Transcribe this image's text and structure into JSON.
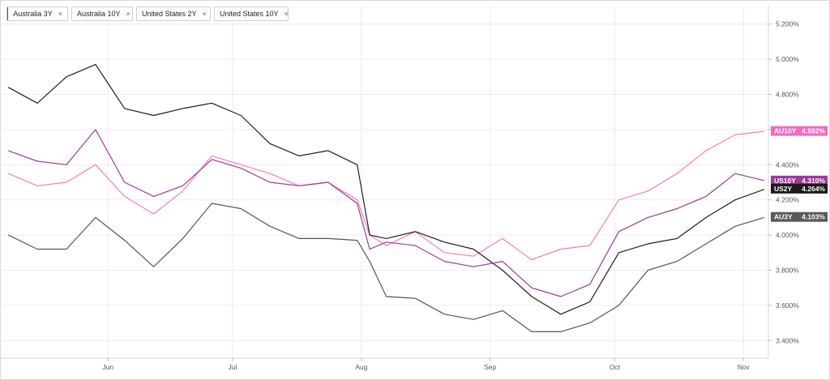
{
  "legend": [
    {
      "label": "Australia 3Y",
      "color": "#555555"
    },
    {
      "label": "Australia 10Y",
      "color": "#f27cc6"
    },
    {
      "label": "United States 2Y",
      "color": "#1f1f1f"
    },
    {
      "label": "United States 10Y",
      "color": "#9b3b96"
    }
  ],
  "close_glyph": "×",
  "menu_glyph": "·",
  "end_labels": [
    {
      "code": "AU10Y",
      "value": "4.592%",
      "bg": "#f06cbf",
      "fg": "#ffffff",
      "y": 4.592
    },
    {
      "code": "US10Y",
      "value": "4.310%",
      "bg": "#9b3b96",
      "fg": "#ffffff",
      "y": 4.31
    },
    {
      "code": "US2Y",
      "value": "4.264%",
      "bg": "#1a1a1a",
      "fg": "#ffffff",
      "y": 4.264
    },
    {
      "code": "AU3Y",
      "value": "4.103%",
      "bg": "#5a5a5a",
      "fg": "#ffffff",
      "y": 4.103
    }
  ],
  "chart_data": {
    "type": "line",
    "title": "",
    "xlabel": "",
    "ylabel": "",
    "y_unit": "%",
    "ylim": [
      3.3,
      5.3
    ],
    "y_ticks": [
      3.4,
      3.6,
      3.8,
      4.0,
      4.2,
      4.4,
      4.6,
      4.8,
      5.0,
      5.2
    ],
    "y_tick_labels": [
      "3.400%",
      "3.600%",
      "3.800%",
      "4.000%",
      "4.200%",
      "4.400%",
      "4.600%",
      "4.800%",
      "5.000%",
      "5.200%"
    ],
    "x_ticks": [
      "2023-06-01",
      "2023-07-01",
      "2023-08-01",
      "2023-09-01",
      "2023-10-01",
      "2023-11-01"
    ],
    "x_tick_labels": [
      "Jun",
      "Jul",
      "Aug",
      "Sep",
      "Oct",
      "Nov"
    ],
    "xlim": [
      "2023-05-06",
      "2023-11-07"
    ],
    "grid": true,
    "legend_position": "top-left",
    "x": [
      "2023-05-08",
      "2023-05-15",
      "2023-05-22",
      "2023-05-29",
      "2023-06-05",
      "2023-06-12",
      "2023-06-19",
      "2023-06-26",
      "2023-07-03",
      "2023-07-10",
      "2023-07-17",
      "2023-07-24",
      "2023-07-31",
      "2023-08-03",
      "2023-08-07",
      "2023-08-14",
      "2023-08-21",
      "2023-08-28",
      "2023-09-04",
      "2023-09-11",
      "2023-09-18",
      "2023-09-25",
      "2023-10-02",
      "2023-10-09",
      "2023-10-16",
      "2023-10-23",
      "2023-10-30",
      "2023-11-06"
    ],
    "series": [
      {
        "name": "Australia 3Y",
        "color": "#555555",
        "values": [
          4.0,
          3.92,
          3.92,
          4.1,
          3.97,
          3.82,
          3.98,
          4.18,
          4.15,
          4.05,
          3.98,
          3.98,
          3.97,
          3.85,
          3.65,
          3.64,
          3.55,
          3.52,
          3.57,
          3.45,
          3.45,
          3.5,
          3.6,
          3.8,
          3.85,
          3.95,
          4.05,
          4.1
        ]
      },
      {
        "name": "Australia 10Y",
        "color": "#f27cc6",
        "values": [
          4.35,
          4.28,
          4.3,
          4.4,
          4.22,
          4.12,
          4.25,
          4.45,
          4.4,
          4.35,
          4.28,
          4.3,
          4.2,
          4.0,
          3.94,
          4.02,
          3.9,
          3.88,
          3.98,
          3.86,
          3.92,
          3.94,
          4.2,
          4.25,
          4.35,
          4.48,
          4.57,
          4.59
        ]
      },
      {
        "name": "United States 2Y",
        "color": "#1f1f1f",
        "values": [
          4.84,
          4.75,
          4.9,
          4.97,
          4.72,
          4.68,
          4.72,
          4.75,
          4.68,
          4.52,
          4.45,
          4.48,
          4.4,
          4.0,
          3.98,
          4.02,
          3.96,
          3.92,
          3.8,
          3.65,
          3.55,
          3.62,
          3.9,
          3.95,
          3.98,
          4.1,
          4.2,
          4.26
        ]
      },
      {
        "name": "United States 10Y",
        "color": "#9b3b96",
        "values": [
          4.48,
          4.42,
          4.4,
          4.6,
          4.3,
          4.22,
          4.28,
          4.43,
          4.38,
          4.3,
          4.28,
          4.3,
          4.18,
          3.92,
          3.96,
          3.94,
          3.85,
          3.82,
          3.85,
          3.7,
          3.65,
          3.72,
          4.02,
          4.1,
          4.15,
          4.22,
          4.35,
          4.31
        ]
      }
    ]
  }
}
